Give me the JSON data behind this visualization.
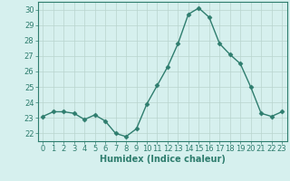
{
  "x": [
    0,
    1,
    2,
    3,
    4,
    5,
    6,
    7,
    8,
    9,
    10,
    11,
    12,
    13,
    14,
    15,
    16,
    17,
    18,
    19,
    20,
    21,
    22,
    23
  ],
  "y": [
    23.1,
    23.4,
    23.4,
    23.3,
    22.9,
    23.2,
    22.8,
    22.0,
    21.8,
    22.3,
    23.9,
    25.1,
    26.3,
    27.8,
    29.7,
    30.1,
    29.5,
    27.8,
    27.1,
    26.5,
    25.0,
    23.3,
    23.1,
    23.4
  ],
  "line_color": "#2e7d6e",
  "marker": "D",
  "marker_size": 2.5,
  "bg_color": "#d6f0ee",
  "grid_color": "#b8d4ce",
  "tick_color": "#2e7d6e",
  "xlabel": "Humidex (Indice chaleur)",
  "ylim": [
    21.5,
    30.5
  ],
  "yticks": [
    22,
    23,
    24,
    25,
    26,
    27,
    28,
    29,
    30
  ],
  "xticks": [
    0,
    1,
    2,
    3,
    4,
    5,
    6,
    7,
    8,
    9,
    10,
    11,
    12,
    13,
    14,
    15,
    16,
    17,
    18,
    19,
    20,
    21,
    22,
    23
  ],
  "spine_color": "#2e7d6e",
  "font_size": 6,
  "xlabel_fontsize": 7,
  "label_color": "#2e7d6e",
  "linewidth": 1.0
}
